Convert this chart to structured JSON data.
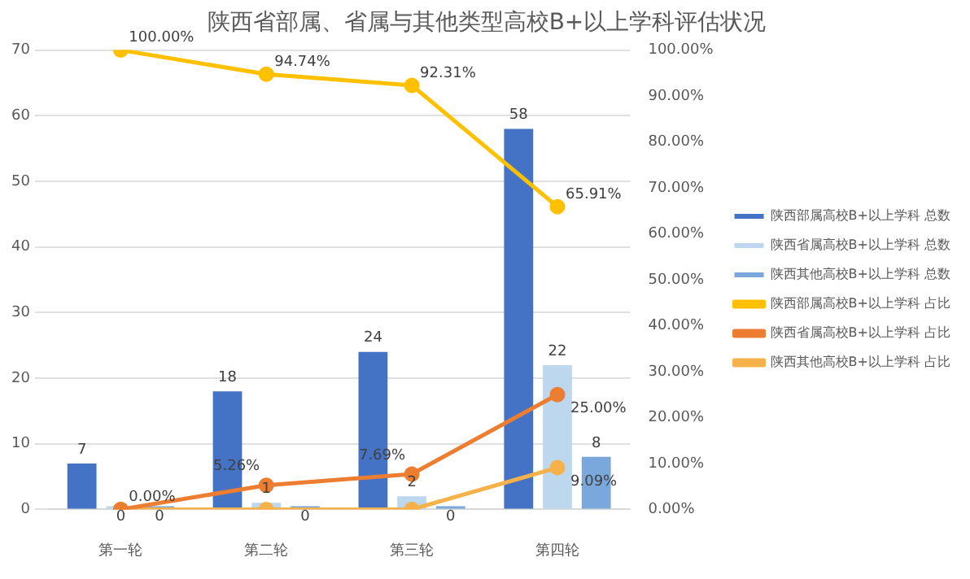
{
  "chart_data": {
    "type": "bar",
    "title": "陕西省部属、省属与其他类型高校B+以上学科评估状况",
    "categories": [
      "第一轮",
      "第二轮",
      "第三轮",
      "第四轮"
    ],
    "series": [
      {
        "name": "陕西部属高校B+以上学科 总数",
        "color": "#4472c4",
        "values": [
          7,
          18,
          24,
          58
        ],
        "value_labels": [
          "7",
          "18",
          "24",
          "58"
        ]
      },
      {
        "name": "陕西省属高校B+以上学科 总数",
        "color": "#bdd7ee",
        "values": [
          0,
          1,
          2,
          22
        ],
        "value_labels": [
          "0",
          "1",
          "2",
          "22"
        ]
      },
      {
        "name": "陕西其他高校B+以上学科 总数",
        "color": "#7aa8dc",
        "values": [
          0,
          0,
          0,
          8
        ],
        "value_labels": [
          "0",
          "0",
          "0",
          "8"
        ]
      },
      {
        "name": "陕西部属高校B+以上学科 占比",
        "type": "line",
        "axis": "y2",
        "color": "#ffc000",
        "values": [
          100,
          94.74,
          92.31,
          65.91
        ],
        "value_labels": [
          "100.00%",
          "94.74%",
          "92.31%",
          "65.91%"
        ]
      },
      {
        "name": "陕西省属高校B+以上学科 占比",
        "type": "line",
        "axis": "y2",
        "color": "#ed7d31",
        "values": [
          0,
          5.26,
          7.69,
          25
        ],
        "value_labels": [
          "0.00%",
          "5.26%",
          "7.69%",
          "25.00%"
        ]
      },
      {
        "name": "陕西其他高校B+以上学科 占比",
        "type": "line",
        "axis": "y2",
        "color": "#f6b24a",
        "values": [
          0,
          0,
          0,
          9.09
        ],
        "value_labels": [
          null,
          null,
          null,
          "9.09%"
        ]
      }
    ],
    "ylim": [
      0,
      70
    ],
    "yticks": [
      0,
      10,
      20,
      30,
      40,
      50,
      60,
      70
    ],
    "y2lim": [
      0,
      100
    ],
    "y2ticks": [
      {
        "value": 0,
        "label": "0.00%"
      },
      {
        "value": 10,
        "label": "10.00%"
      },
      {
        "value": 20,
        "label": "20.00%"
      },
      {
        "value": 30,
        "label": "30.00%"
      },
      {
        "value": 40,
        "label": "40.00%"
      },
      {
        "value": 50,
        "label": "50.00%"
      },
      {
        "value": 60,
        "label": "60.00%"
      },
      {
        "value": 70,
        "label": "70.00%"
      },
      {
        "value": 80,
        "label": "80.00%"
      },
      {
        "value": 90,
        "label": "90.00%"
      },
      {
        "value": 100,
        "label": "100.00%"
      }
    ],
    "grid": "y",
    "legend": "right",
    "marker": "circle"
  }
}
